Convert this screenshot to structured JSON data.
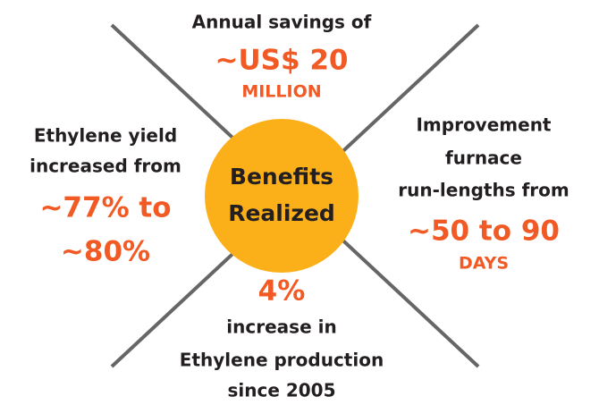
{
  "center": {
    "line1": "Benefits",
    "line2": "Realized"
  },
  "top": {
    "line1": "Annual savings of",
    "highlight": "~US$ 20",
    "unit": "MILLION"
  },
  "left": {
    "line1": "Ethylene yield",
    "line2": "increased from",
    "highlight1": "~77% to",
    "highlight2": "~80%"
  },
  "right": {
    "line1": "Improvement",
    "line2": "furnace",
    "line3": "run-lengths from",
    "highlight": "~50 to 90",
    "unit": "DAYS"
  },
  "bottom": {
    "highlight": "4%",
    "line1": "increase in",
    "line2": "Ethylene production",
    "line3": "since 2005"
  }
}
